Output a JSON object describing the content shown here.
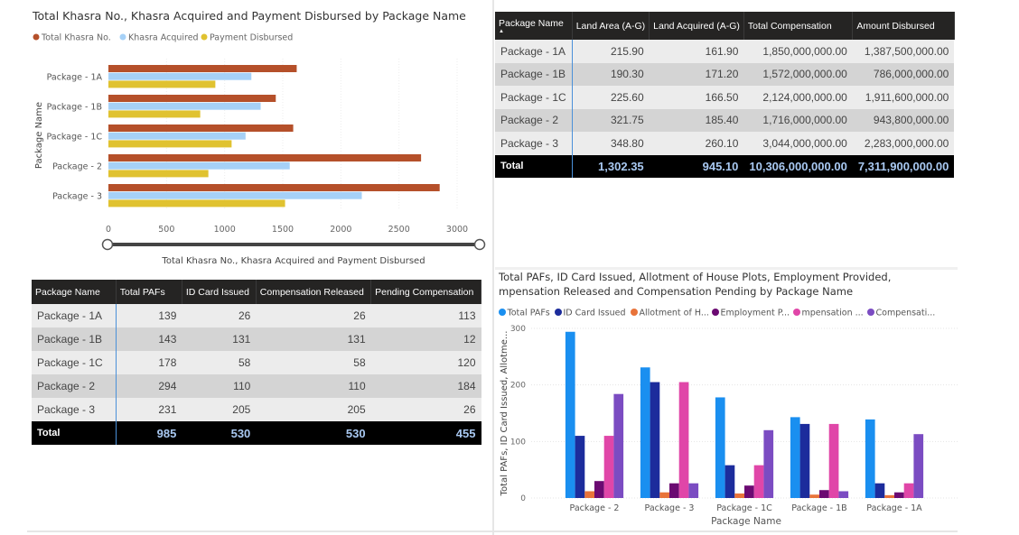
{
  "chart_data": [
    {
      "type": "bar",
      "orientation": "horizontal",
      "title": "Total Khasra No., Khasra Acquired and Payment Disbursed by Package Name",
      "ylabel": "Package Name",
      "xlabel": "Total Khasra No., Khasra Acquired and Payment Disbursed",
      "categories": [
        "Package - 1A",
        "Package - 1B",
        "Package - 1C",
        "Package - 2",
        "Package - 3"
      ],
      "xlim": [
        0,
        3000
      ],
      "xticks": [
        0,
        500,
        1000,
        1500,
        2000,
        2500,
        3000
      ],
      "legend": "top-left",
      "series": [
        {
          "name": "Total Khasra No.",
          "color": "#b5502a",
          "values": [
            1620,
            1440,
            1590,
            2690,
            2850
          ]
        },
        {
          "name": "Khasra Acquired",
          "color": "#a6d1f7",
          "values": [
            1230,
            1310,
            1180,
            1560,
            2180
          ]
        },
        {
          "name": "Payment Disbursed",
          "color": "#e0c230",
          "values": [
            920,
            790,
            1060,
            860,
            1520
          ]
        }
      ]
    },
    {
      "type": "bar",
      "title": "Total PAFs, ID Card Issued, Allotment of House Plots, Employment Provided, mpensation Released and Compensation Pending by Package Name",
      "title_lines": [
        "Total PAFs, ID Card Issued, Allotment of House Plots, Employment Provided,",
        "mpensation Released and Compensation Pending by Package Name"
      ],
      "xlabel": "Package Name",
      "ylabel": "Total PAFs, ID Card Issued, Allotme...",
      "categories": [
        "Package - 2",
        "Package - 3",
        "Package - 1C",
        "Package - 1B",
        "Package - 1A"
      ],
      "ylim": [
        0,
        300
      ],
      "yticks": [
        0,
        100,
        200,
        300
      ],
      "grid": true,
      "legend": "top-left",
      "series": [
        {
          "name": "Total PAFs",
          "color": "#1a8ff0",
          "values": [
            294,
            231,
            178,
            143,
            139
          ]
        },
        {
          "name": "ID Card Issued",
          "color": "#1c2c9c",
          "values": [
            110,
            205,
            58,
            131,
            26
          ]
        },
        {
          "name": "Allotment of H...",
          "color": "#e8733a",
          "values": [
            12,
            10,
            8,
            6,
            5
          ]
        },
        {
          "name": "Employment P...",
          "color": "#6b0a72",
          "values": [
            30,
            26,
            22,
            14,
            10
          ]
        },
        {
          "name": "mpensation ...",
          "color": "#e046a8",
          "values": [
            110,
            205,
            58,
            131,
            26
          ]
        },
        {
          "name": "Compensati...",
          "color": "#7b4cc2",
          "values": [
            184,
            26,
            120,
            12,
            113
          ]
        }
      ]
    }
  ],
  "land_table": {
    "sort_icon": "sort-ascending-icon",
    "headers": [
      "Package Name",
      "Land Area (A-G)",
      "Land Acquired (A-G)",
      "Total Compensation",
      "Amount Disbursed"
    ],
    "rows": [
      [
        "Package - 1A",
        "215.90",
        "161.90",
        "1,850,000,000.00",
        "1,387,500,000.00"
      ],
      [
        "Package - 1B",
        "190.30",
        "171.20",
        "1,572,000,000.00",
        "786,000,000.00"
      ],
      [
        "Package - 1C",
        "225.60",
        "166.50",
        "2,124,000,000.00",
        "1,911,600,000.00"
      ],
      [
        "Package - 2",
        "321.75",
        "185.40",
        "1,716,000,000.00",
        "943,800,000.00"
      ],
      [
        "Package - 3",
        "348.80",
        "260.10",
        "3,044,000,000.00",
        "2,283,000,000.00"
      ]
    ],
    "total": [
      "Total",
      "1,302.35",
      "945.10",
      "10,306,000,000.00",
      "7,311,900,000.00"
    ]
  },
  "paf_table": {
    "headers": [
      "Package Name",
      "Total PAFs",
      "ID Card Issued",
      "Compensation Released",
      "Pending Compensation"
    ],
    "rows": [
      [
        "Package - 1A",
        "139",
        "26",
        "26",
        "113"
      ],
      [
        "Package - 1B",
        "143",
        "131",
        "131",
        "12"
      ],
      [
        "Package - 1C",
        "178",
        "58",
        "58",
        "120"
      ],
      [
        "Package - 2",
        "294",
        "110",
        "110",
        "184"
      ],
      [
        "Package - 3",
        "231",
        "205",
        "205",
        "26"
      ]
    ],
    "total": [
      "Total",
      "985",
      "530",
      "530",
      "455"
    ]
  }
}
